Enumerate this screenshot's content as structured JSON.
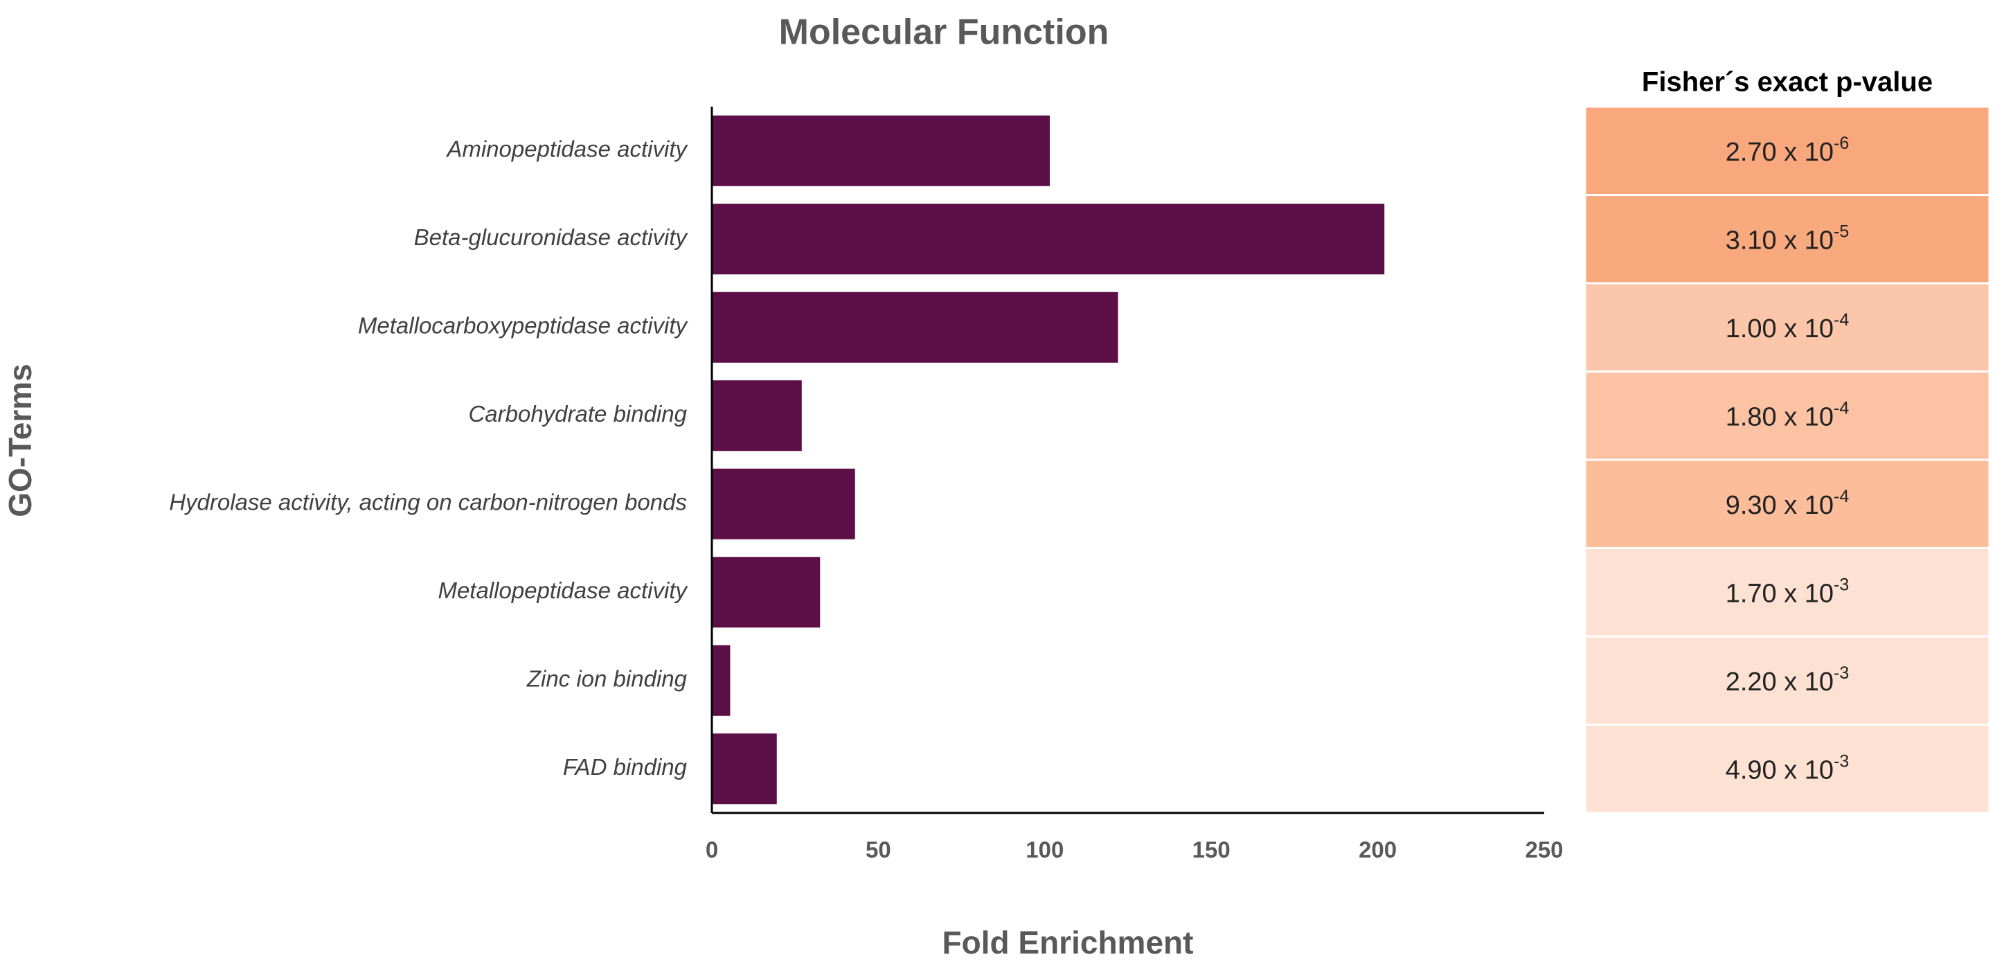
{
  "chart_data": {
    "type": "bar",
    "orientation": "horizontal",
    "title": "Molecular Function",
    "x_label": "Fold Enrichment",
    "y_label": "GO-Terms",
    "categories": [
      "Aminopeptidase activity",
      "Beta-glucuronidase activity",
      "Metallocarboxypeptidase activity",
      "Carbohydrate binding",
      "Hydrolase activity, acting on carbon-nitrogen bonds",
      "Metallopeptidase activity",
      "Zinc ion binding",
      "FAD binding"
    ],
    "values": [
      101.5,
      202,
      122,
      27,
      43,
      32.5,
      5.5,
      19.5
    ],
    "color": "#5c0f47",
    "xlim": [
      0,
      250
    ],
    "xticks": [
      0,
      50,
      100,
      150,
      200,
      250
    ],
    "grid": false
  },
  "table": {
    "header": "Fisher´s exact p-value",
    "rows": [
      {
        "base": "2.70 x 10",
        "exponent": "-6",
        "color": "#f9a77c"
      },
      {
        "base": "3.10 x 10",
        "exponent": "-5",
        "color": "#f9a97e"
      },
      {
        "base": "1.00 x 10",
        "exponent": "-4",
        "color": "#fcc6aa"
      },
      {
        "base": "1.80 x 10",
        "exponent": "-4",
        "color": "#fbc2a3"
      },
      {
        "base": "9.30 x 10",
        "exponent": "-4",
        "color": "#fbbd9a"
      },
      {
        "base": "1.70 x 10",
        "exponent": "-3",
        "color": "#fde2d3"
      },
      {
        "base": "2.20 x 10",
        "exponent": "-3",
        "color": "#fde2d3"
      },
      {
        "base": "4.90 x 10",
        "exponent": "-3",
        "color": "#fde2d3"
      }
    ]
  }
}
